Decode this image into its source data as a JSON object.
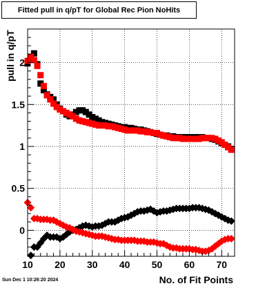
{
  "chart_data": {
    "type": "scatter",
    "title": "Fitted pull in q/pT for Global Rec Pion NoHits",
    "xlabel": "No. of Fit Points",
    "ylabel": "pull in q/pT",
    "xlim": [
      10,
      74
    ],
    "ylim": [
      -0.31,
      2.4
    ],
    "x_ticks": [
      "10",
      "20",
      "30",
      "40",
      "50",
      "60",
      "70"
    ],
    "y_ticks": [
      "0",
      "0.5",
      "1",
      "1.5",
      "2"
    ],
    "grid": true,
    "x": [
      10,
      11,
      12,
      13,
      14,
      15,
      16,
      17,
      18,
      19,
      20,
      21,
      22,
      23,
      24,
      25,
      26,
      27,
      28,
      29,
      30,
      31,
      32,
      33,
      34,
      35,
      36,
      37,
      38,
      39,
      40,
      41,
      42,
      43,
      44,
      45,
      46,
      47,
      48,
      49,
      50,
      51,
      52,
      53,
      54,
      55,
      56,
      57,
      58,
      59,
      60,
      61,
      62,
      63,
      64,
      65,
      66,
      67,
      68,
      69,
      70,
      71,
      72,
      73
    ],
    "series": [
      {
        "color": "#000000",
        "marker": "square",
        "values": [
          1.99,
          2.04,
          2.11,
          1.98,
          1.75,
          1.67,
          1.62,
          1.59,
          1.56,
          1.5,
          1.45,
          1.42,
          1.38,
          1.36,
          1.38,
          1.41,
          1.43,
          1.43,
          1.41,
          1.38,
          1.35,
          1.33,
          1.31,
          1.29,
          1.28,
          1.27,
          1.26,
          1.25,
          1.24,
          1.23,
          1.23,
          1.22,
          1.22,
          1.21,
          1.2,
          1.2,
          1.19,
          1.18,
          1.17,
          1.16,
          1.15,
          1.14,
          1.13,
          1.13,
          1.12,
          1.12,
          1.11,
          1.11,
          1.11,
          1.11,
          1.11,
          1.11,
          1.11,
          1.11,
          1.11,
          1.1,
          1.1,
          1.09,
          1.08,
          1.06,
          1.04,
          1.02,
          1.0,
          0.97
        ]
      },
      {
        "color": "#000000",
        "marker": "diamond",
        "values": [
          -0.42,
          -0.3,
          -0.2,
          -0.2,
          -0.15,
          -0.1,
          -0.06,
          -0.08,
          -0.08,
          -0.08,
          -0.1,
          -0.08,
          -0.05,
          -0.02,
          0.0,
          0.01,
          0.03,
          0.05,
          0.06,
          0.05,
          0.04,
          0.05,
          0.05,
          0.06,
          0.08,
          0.1,
          0.1,
          0.1,
          0.12,
          0.14,
          0.15,
          0.16,
          0.18,
          0.2,
          0.22,
          0.23,
          0.23,
          0.24,
          0.25,
          0.23,
          0.21,
          0.22,
          0.23,
          0.23,
          0.24,
          0.25,
          0.26,
          0.26,
          0.26,
          0.26,
          0.26,
          0.27,
          0.27,
          0.27,
          0.26,
          0.25,
          0.24,
          0.22,
          0.2,
          0.18,
          0.16,
          0.14,
          0.12,
          0.11
        ]
      },
      {
        "color": "#ff0000",
        "marker": "square",
        "values": [
          2.02,
          2.07,
          2.03,
          1.96,
          1.85,
          1.72,
          1.61,
          1.56,
          1.51,
          1.47,
          1.44,
          1.42,
          1.4,
          1.38,
          1.36,
          1.33,
          1.31,
          1.3,
          1.29,
          1.28,
          1.27,
          1.26,
          1.25,
          1.25,
          1.25,
          1.24,
          1.24,
          1.23,
          1.22,
          1.21,
          1.2,
          1.19,
          1.19,
          1.19,
          1.19,
          1.18,
          1.18,
          1.17,
          1.17,
          1.16,
          1.16,
          1.14,
          1.13,
          1.12,
          1.11,
          1.1,
          1.1,
          1.1,
          1.09,
          1.09,
          1.09,
          1.09,
          1.09,
          1.09,
          1.1,
          1.1,
          1.1,
          1.1,
          1.09,
          1.07,
          1.05,
          1.02,
          0.99,
          0.96
        ]
      },
      {
        "color": "#ff0000",
        "marker": "diamond",
        "values": [
          0.33,
          0.27,
          0.14,
          0.14,
          0.13,
          0.13,
          0.13,
          0.12,
          0.12,
          0.1,
          0.08,
          0.06,
          0.04,
          0.03,
          0.01,
          -0.01,
          -0.02,
          -0.03,
          -0.04,
          -0.05,
          -0.06,
          -0.07,
          -0.07,
          -0.07,
          -0.08,
          -0.09,
          -0.1,
          -0.11,
          -0.11,
          -0.12,
          -0.12,
          -0.12,
          -0.12,
          -0.12,
          -0.13,
          -0.13,
          -0.13,
          -0.14,
          -0.14,
          -0.14,
          -0.15,
          -0.16,
          -0.16,
          -0.18,
          -0.2,
          -0.21,
          -0.21,
          -0.22,
          -0.22,
          -0.22,
          -0.22,
          -0.23,
          -0.23,
          -0.24,
          -0.25,
          -0.25,
          -0.24,
          -0.22,
          -0.19,
          -0.16,
          -0.13,
          -0.11,
          -0.1,
          -0.1
        ]
      }
    ]
  },
  "footer": {
    "timestamp": "Sun Dec  1 10:26:20 2024"
  }
}
